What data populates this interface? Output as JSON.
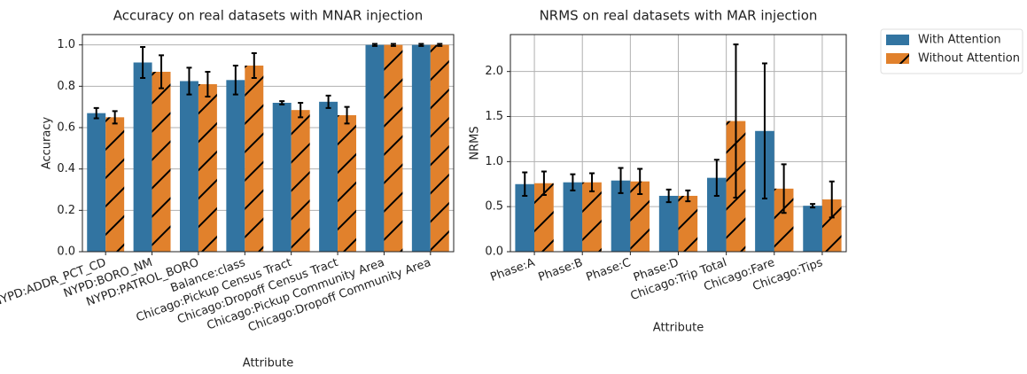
{
  "chart_data": [
    {
      "type": "bar",
      "title": "Accuracy on real datasets with MNAR injection",
      "x_label": "Attribute",
      "y_label": "Accuracy",
      "categories": [
        "NYPD:ADDR_PCT_CD",
        "NYPD:BORO_NM",
        "NYPD:PATROL_BORO",
        "Balance:class",
        "Chicago:Pickup Census Tract",
        "Chicago:Dropoff Census Tract",
        "Chicago:Pickup Community Area",
        "Chicago:Dropoff Community Area"
      ],
      "series": [
        {
          "name": "With Attention",
          "color": "#3274a1",
          "values": [
            0.67,
            0.915,
            0.825,
            0.83,
            0.72,
            0.725,
            1.0,
            1.0
          ],
          "errors": [
            0.025,
            0.075,
            0.065,
            0.07,
            0.008,
            0.03,
            0.005,
            0.005
          ]
        },
        {
          "name": "Without Attention",
          "color": "#e1812c",
          "hatch": "/",
          "values": [
            0.65,
            0.87,
            0.81,
            0.9,
            0.685,
            0.66,
            1.0,
            1.0
          ],
          "errors": [
            0.03,
            0.08,
            0.06,
            0.06,
            0.035,
            0.04,
            0.005,
            0.005
          ]
        }
      ],
      "ylim": [
        0,
        1.05
      ],
      "yticks": [
        {
          "value": 0,
          "label": "0.0"
        },
        0.2,
        0.4,
        0.6,
        0.8,
        {
          "value": 1,
          "label": "1.0"
        }
      ],
      "grid": "y"
    },
    {
      "type": "bar",
      "title": "NRMS on real datasets with MAR injection",
      "x_label": "Attribute",
      "y_label": "NRMS",
      "categories": [
        "Phase:A",
        "Phase:B",
        "Phase:C",
        "Phase:D",
        "Chicago:Trip Total",
        "Chicago:Fare",
        "Chicago:Tips"
      ],
      "series": [
        {
          "name": "With Attention",
          "color": "#3274a1",
          "values": [
            0.75,
            0.77,
            0.79,
            0.62,
            0.82,
            1.34,
            0.51
          ],
          "errors": [
            0.13,
            0.09,
            0.14,
            0.07,
            0.2,
            0.75,
            0.02
          ]
        },
        {
          "name": "Without Attention",
          "color": "#e1812c",
          "hatch": "/",
          "values": [
            0.76,
            0.77,
            0.78,
            0.62,
            1.45,
            0.7,
            0.58
          ],
          "errors": [
            0.13,
            0.1,
            0.14,
            0.06,
            0.85,
            0.27,
            0.2
          ]
        }
      ],
      "ylim": [
        0,
        2.41
      ],
      "yticks": [
        {
          "value": 0,
          "label": "0.0"
        },
        0.5,
        {
          "value": 1,
          "label": "1.0"
        },
        1.5,
        {
          "value": 2,
          "label": "2.0"
        }
      ],
      "grid": "both",
      "legend": "outside-right"
    }
  ]
}
